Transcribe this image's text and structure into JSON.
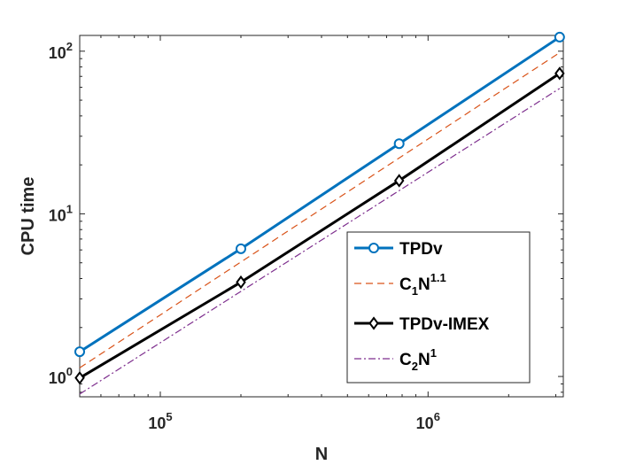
{
  "chart_data": {
    "type": "line",
    "xscale": "log",
    "yscale": "log",
    "xlabel": "N",
    "ylabel": "CPU time",
    "xlim": [
      50000,
      3200000
    ],
    "ylim": [
      0.75,
      125
    ],
    "x_ticks": [
      {
        "value": 100000,
        "base": "10",
        "exp": "5"
      },
      {
        "value": 1000000,
        "base": "10",
        "exp": "6"
      }
    ],
    "y_ticks": [
      {
        "value": 1,
        "base": "10",
        "exp": "0"
      },
      {
        "value": 10,
        "base": "10",
        "exp": "1"
      },
      {
        "value": 100,
        "base": "10",
        "exp": "2"
      }
    ],
    "legend_position": "bottom-right",
    "series": [
      {
        "name": "TPDv",
        "legend": {
          "main": "TPDv",
          "sub": "",
          "sup": ""
        },
        "x": [
          50000,
          200000,
          780000,
          3100000
        ],
        "values": [
          1.42,
          6.1,
          27,
          122
        ],
        "color": "#0072BD",
        "line_style": "solid",
        "marker": "circle"
      },
      {
        "name": "C1N^1.1",
        "legend": {
          "main": "C",
          "sub": "1",
          "main2": "N",
          "sup": "1.1"
        },
        "x": [
          50000,
          3100000
        ],
        "values": [
          1.13,
          98
        ],
        "color": "#D95319",
        "line_style": "dashed",
        "marker": "none"
      },
      {
        "name": "TPDv-IMEX",
        "legend": {
          "main": "TPDv-IMEX",
          "sub": "",
          "sup": ""
        },
        "x": [
          50000,
          200000,
          780000,
          3100000
        ],
        "values": [
          0.98,
          3.8,
          16,
          73
        ],
        "color": "#000000",
        "line_style": "solid",
        "marker": "diamond"
      },
      {
        "name": "C2N^1",
        "legend": {
          "main": "C",
          "sub": "2",
          "main2": "N",
          "sup": "1"
        },
        "x": [
          50000,
          3100000
        ],
        "values": [
          0.78,
          59
        ],
        "color": "#7E2F8E",
        "line_style": "dashdot",
        "marker": "none"
      }
    ]
  }
}
